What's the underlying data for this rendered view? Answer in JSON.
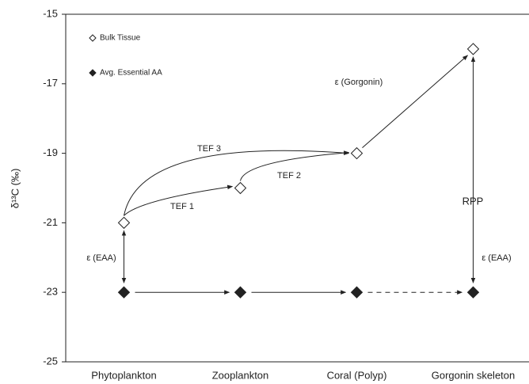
{
  "chart_data": {
    "type": "scatter",
    "y_label": "δ¹³C (‰)",
    "categories": [
      "Phytoplankton",
      "Zooplankton",
      "Coral (Polyp)",
      "Gorgonin skeleton"
    ],
    "series": [
      {
        "name": "Bulk Tissue",
        "color": "#ffffff",
        "values": [
          -21,
          -20,
          -19,
          -16
        ]
      },
      {
        "name": "Avg. Essential AA",
        "color": "#222222",
        "values": [
          -23,
          -23,
          -23,
          -23
        ]
      }
    ],
    "ylim": [
      -25,
      -15
    ],
    "yticks": [
      -25,
      -23,
      -21,
      -19,
      -17,
      -15
    ],
    "legend": "upper left",
    "annotations": [
      "TEF 3",
      "TEF 2",
      "TEF 1",
      "ε (Gorgonin)",
      "RPP",
      "ε (EAA)",
      "ε (EAA)"
    ]
  }
}
